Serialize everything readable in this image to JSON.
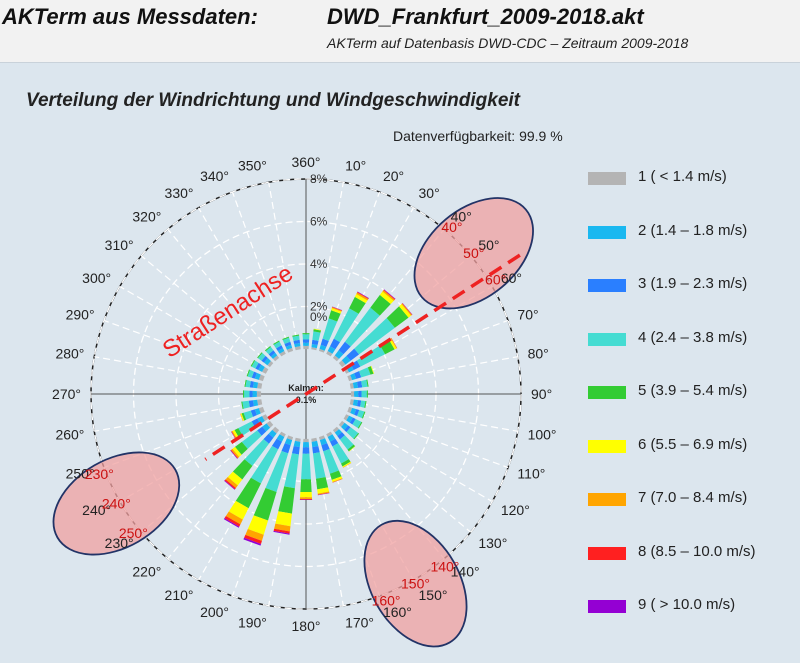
{
  "header": {
    "label": "AKTerm aus Messdaten:",
    "filename": "DWD_Frankfurt_2009-2018.akt",
    "subtitle": "AKTerm auf Datenbasis DWD-CDC – Zeitraum 2009-2018"
  },
  "chart_title": "Verteilung der Windrichtung und Windgeschwindigkeit",
  "availability": "Datenverfügbarkeit: 99.9 %",
  "calm": {
    "label": "Kalmen:",
    "value": "0.1%"
  },
  "street_axis_label": "Straßenachse",
  "colors": {
    "background": "#dce6ee",
    "grid": "#ffffff",
    "highlight_fill": "#f0a0a0",
    "highlight_stroke": "#223366",
    "street_axis": "#ee2222"
  },
  "highlights": [
    {
      "direction": 50,
      "labels": [
        "40°",
        "50°",
        "60°"
      ]
    },
    {
      "direction": 240,
      "labels": [
        "250°",
        "240°",
        "230°"
      ]
    },
    {
      "direction": 150,
      "labels": [
        "140°",
        "150°",
        "160°"
      ]
    }
  ],
  "chart_data": {
    "type": "wind_rose",
    "rlim": [
      0,
      8
    ],
    "radial_ticks": [
      "0%",
      "2%",
      "4%",
      "6%",
      "8%"
    ],
    "direction_labels": [
      "360°",
      "10°",
      "20°",
      "30°",
      "40°",
      "50°",
      "60°",
      "70°",
      "80°",
      "90°",
      "100°",
      "110°",
      "120°",
      "130°",
      "140°",
      "150°",
      "160°",
      "170°",
      "180°",
      "190°",
      "200°",
      "210°",
      "220°",
      "230°",
      "240°",
      "250°",
      "260°",
      "270°",
      "280°",
      "290°",
      "300°",
      "310°",
      "320°",
      "330°",
      "340°",
      "350°"
    ],
    "directions": [
      10,
      20,
      30,
      40,
      50,
      60,
      70,
      80,
      90,
      100,
      110,
      120,
      130,
      140,
      150,
      160,
      170,
      180,
      190,
      200,
      210,
      220,
      230,
      240,
      250,
      260,
      270,
      280,
      290,
      300,
      310,
      320,
      330,
      340,
      350,
      360
    ],
    "series": [
      {
        "name": "1 ( < 1.4 m/s)",
        "color": "#b4b4b4",
        "values": [
          0.1,
          0.1,
          0.15,
          0.15,
          0.2,
          0.15,
          0.15,
          0.15,
          0.15,
          0.15,
          0.15,
          0.15,
          0.15,
          0.15,
          0.15,
          0.15,
          0.15,
          0.15,
          0.15,
          0.15,
          0.15,
          0.2,
          0.2,
          0.2,
          0.2,
          0.2,
          0.2,
          0.2,
          0.2,
          0.2,
          0.15,
          0.15,
          0.15,
          0.15,
          0.15,
          0.15
        ]
      },
      {
        "name": "2 (1.4 – 1.8 m/s)",
        "color": "#1ab8f0",
        "values": [
          0.15,
          0.2,
          0.25,
          0.3,
          0.3,
          0.25,
          0.2,
          0.2,
          0.2,
          0.2,
          0.2,
          0.2,
          0.2,
          0.2,
          0.25,
          0.25,
          0.25,
          0.25,
          0.25,
          0.25,
          0.25,
          0.25,
          0.25,
          0.25,
          0.2,
          0.2,
          0.2,
          0.2,
          0.2,
          0.2,
          0.2,
          0.15,
          0.15,
          0.15,
          0.15,
          0.15
        ]
      },
      {
        "name": "3 (1.9 – 2.3 m/s)",
        "color": "#2a7fff",
        "values": [
          0.2,
          0.3,
          0.4,
          0.5,
          0.5,
          0.35,
          0.25,
          0.2,
          0.15,
          0.15,
          0.15,
          0.15,
          0.15,
          0.2,
          0.25,
          0.3,
          0.3,
          0.3,
          0.35,
          0.4,
          0.4,
          0.35,
          0.3,
          0.3,
          0.2,
          0.2,
          0.15,
          0.15,
          0.15,
          0.15,
          0.15,
          0.15,
          0.15,
          0.15,
          0.15,
          0.15
        ]
      },
      {
        "name": "4 (2.4 – 3.8 m/s)",
        "color": "#45dcd2",
        "values": [
          0.4,
          1.0,
          1.6,
          2.0,
          2.1,
          1.3,
          0.45,
          0.25,
          0.25,
          0.2,
          0.25,
          0.3,
          0.45,
          0.6,
          0.9,
          1.1,
          1.2,
          1.2,
          1.6,
          1.9,
          1.8,
          1.3,
          0.9,
          0.7,
          0.35,
          0.3,
          0.25,
          0.2,
          0.2,
          0.2,
          0.2,
          0.2,
          0.2,
          0.2,
          0.2,
          0.25
        ]
      },
      {
        "name": "5 (3.9 – 5.4 m/s)",
        "color": "#33cc33",
        "values": [
          0.1,
          0.4,
          0.6,
          0.75,
          0.8,
          0.5,
          0.15,
          0.05,
          0.05,
          0.05,
          0.05,
          0.05,
          0.05,
          0.1,
          0.15,
          0.3,
          0.5,
          0.6,
          1.2,
          1.4,
          1.3,
          0.8,
          0.4,
          0.2,
          0.1,
          0.05,
          0.05,
          0.05,
          0.05,
          0.05,
          0.05,
          0.05,
          0.05,
          0.05,
          0.05,
          0.05
        ]
      },
      {
        "name": "6 (5.5 – 6.9 m/s)",
        "color": "#ffff00",
        "values": [
          0.03,
          0.1,
          0.15,
          0.2,
          0.15,
          0.1,
          0.03,
          0,
          0,
          0,
          0,
          0,
          0,
          0.02,
          0.05,
          0.1,
          0.2,
          0.25,
          0.6,
          0.7,
          0.6,
          0.35,
          0.15,
          0.1,
          0.05,
          0,
          0,
          0,
          0,
          0,
          0,
          0,
          0,
          0,
          0,
          0
        ]
      },
      {
        "name": "7 (7.0 – 8.4 m/s)",
        "color": "#ffa500",
        "values": [
          0,
          0.05,
          0.08,
          0.08,
          0.05,
          0.03,
          0,
          0,
          0,
          0,
          0,
          0,
          0,
          0,
          0.02,
          0.03,
          0.05,
          0.08,
          0.25,
          0.3,
          0.25,
          0.15,
          0.08,
          0.05,
          0.02,
          0,
          0,
          0,
          0,
          0,
          0,
          0,
          0,
          0,
          0,
          0
        ]
      },
      {
        "name": "8 (8.5 – 10.0 m/s)",
        "color": "#ff2020",
        "values": [
          0,
          0.02,
          0.03,
          0.03,
          0.02,
          0.01,
          0,
          0,
          0,
          0,
          0,
          0,
          0,
          0,
          0,
          0.01,
          0.02,
          0.03,
          0.1,
          0.15,
          0.12,
          0.07,
          0.03,
          0.02,
          0,
          0,
          0,
          0,
          0,
          0,
          0,
          0,
          0,
          0,
          0,
          0
        ]
      },
      {
        "name": "9 ( > 10.0 m/s)",
        "color": "#9400d3",
        "values": [
          0,
          0.01,
          0.02,
          0.02,
          0.01,
          0,
          0,
          0,
          0,
          0,
          0,
          0,
          0,
          0,
          0,
          0,
          0.01,
          0.02,
          0.05,
          0.08,
          0.06,
          0.03,
          0.02,
          0.01,
          0,
          0,
          0,
          0,
          0,
          0,
          0,
          0,
          0,
          0,
          0,
          0
        ]
      }
    ]
  },
  "legend": [
    {
      "label": "1 ( < 1.4 m/s)",
      "color": "#b4b4b4"
    },
    {
      "label": "2 (1.4 – 1.8 m/s)",
      "color": "#1ab8f0"
    },
    {
      "label": "3 (1.9 – 2.3 m/s)",
      "color": "#2a7fff"
    },
    {
      "label": "4 (2.4 – 3.8 m/s)",
      "color": "#45dcd2"
    },
    {
      "label": "5 (3.9 – 5.4 m/s)",
      "color": "#33cc33"
    },
    {
      "label": "6 (5.5 – 6.9 m/s)",
      "color": "#ffff00"
    },
    {
      "label": "7 (7.0 – 8.4 m/s)",
      "color": "#ffa500"
    },
    {
      "label": "8 (8.5 – 10.0 m/s)",
      "color": "#ff2020"
    },
    {
      "label": "9 ( > 10.0 m/s)",
      "color": "#9400d3"
    }
  ]
}
